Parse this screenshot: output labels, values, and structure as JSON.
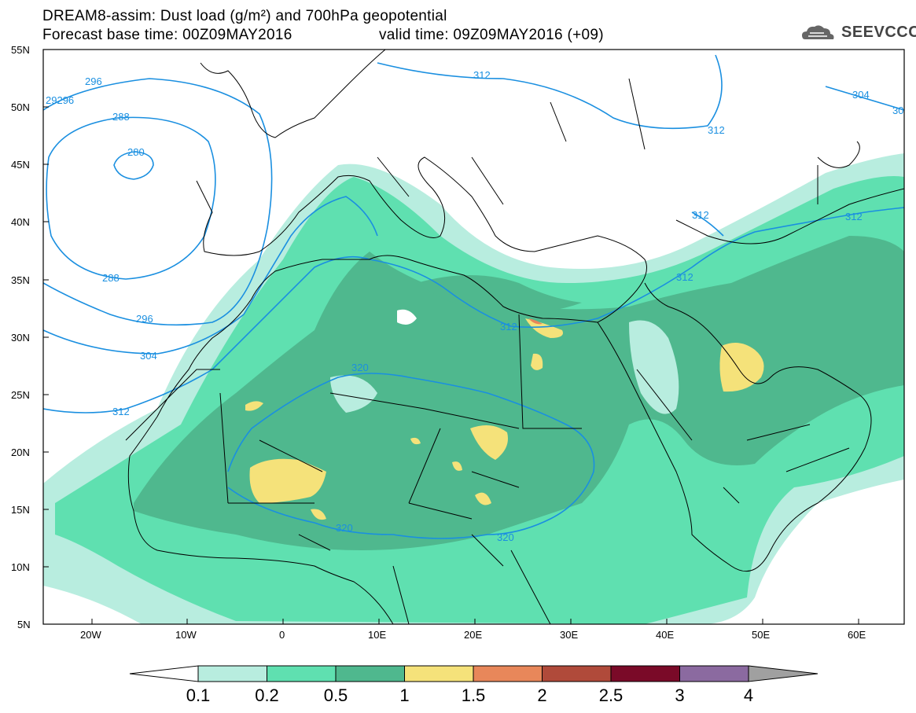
{
  "title": {
    "line1": "DREAM8-assim: Dust load (g/m²) and 700hPa geopotential",
    "line2a": "Forecast base time: 00Z09MAY2016",
    "line2b": "valid time: 09Z09MAY2016 (+09)"
  },
  "logo": {
    "text": "SEEVCCC",
    "icon": "cloud-icon"
  },
  "axes": {
    "lat_labels": [
      "55N",
      "50N",
      "45N",
      "40N",
      "35N",
      "30N",
      "25N",
      "20N",
      "15N",
      "10N",
      "5N"
    ],
    "lon_labels": [
      "20W",
      "10W",
      "0",
      "10E",
      "20E",
      "30E",
      "40E",
      "50E",
      "60E"
    ]
  },
  "contours": {
    "labels": [
      "29296",
      "296",
      "288",
      "280",
      "288",
      "296",
      "304",
      "312",
      "312",
      "312",
      "312",
      "312",
      "312",
      "312",
      "320",
      "320",
      "320",
      "304",
      "30"
    ]
  },
  "colorbar": {
    "labels": [
      "0.1",
      "0.2",
      "0.5",
      "1",
      "1.5",
      "2",
      "2.5",
      "3",
      "4"
    ],
    "colors": [
      "#b8eddf",
      "#5fe0b0",
      "#4fb88e",
      "#f5e27a",
      "#e8875a",
      "#b04a3a",
      "#7a0a28",
      "#8b6aa0"
    ],
    "under_color": "#ffffff",
    "over_color": "#a0a0a0"
  }
}
